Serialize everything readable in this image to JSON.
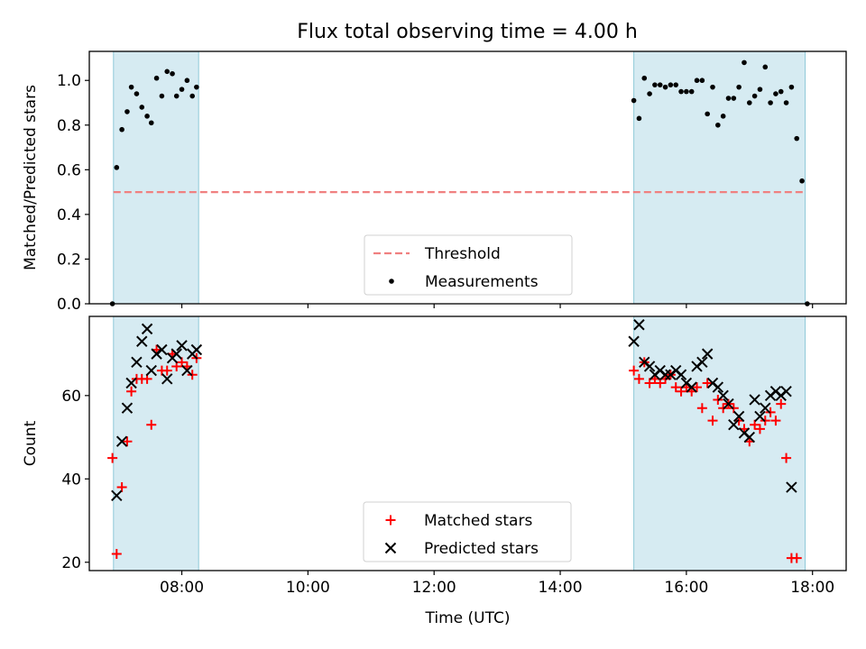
{
  "title": "Flux total observing time = 4.00 h",
  "chart_data": [
    {
      "type": "scatter",
      "ylabel": "Matched/Predicted stars",
      "xlabel": "",
      "xlim": [
        "06:32",
        "18:32"
      ],
      "ylim": [
        0,
        1.13
      ],
      "yticks": [
        0.0,
        0.2,
        0.4,
        0.6,
        0.8,
        1.0
      ],
      "ytick_labels": [
        "0.0",
        "0.2",
        "0.4",
        "0.6",
        "0.8",
        "1.0"
      ],
      "shaded_intervals": [
        [
          "06:55",
          "08:16"
        ],
        [
          "15:10",
          "17:53"
        ]
      ],
      "threshold": 0.5,
      "legend": {
        "placement": "lower center",
        "entries": [
          "Threshold",
          "Measurements"
        ]
      },
      "series": [
        {
          "name": "Threshold",
          "kind": "hline",
          "color": "#f08080",
          "x": [
            "06:55",
            "17:53"
          ],
          "y": 0.5
        },
        {
          "name": "Measurements",
          "kind": "dot",
          "color": "#000000",
          "points": [
            [
              "06:54",
              0.0
            ],
            [
              "06:58",
              0.61
            ],
            [
              "07:03",
              0.78
            ],
            [
              "07:08",
              0.86
            ],
            [
              "07:12",
              0.97
            ],
            [
              "07:17",
              0.94
            ],
            [
              "07:22",
              0.88
            ],
            [
              "07:27",
              0.84
            ],
            [
              "07:31",
              0.81
            ],
            [
              "07:36",
              1.01
            ],
            [
              "07:41",
              0.93
            ],
            [
              "07:46",
              1.04
            ],
            [
              "07:51",
              1.03
            ],
            [
              "07:55",
              0.93
            ],
            [
              "08:00",
              0.96
            ],
            [
              "08:05",
              1.0
            ],
            [
              "08:10",
              0.93
            ],
            [
              "08:14",
              0.97
            ],
            [
              "15:10",
              0.91
            ],
            [
              "15:15",
              0.83
            ],
            [
              "15:20",
              1.01
            ],
            [
              "15:25",
              0.94
            ],
            [
              "15:30",
              0.98
            ],
            [
              "15:35",
              0.98
            ],
            [
              "15:40",
              0.97
            ],
            [
              "15:45",
              0.98
            ],
            [
              "15:50",
              0.98
            ],
            [
              "15:55",
              0.95
            ],
            [
              "16:00",
              0.95
            ],
            [
              "16:05",
              0.95
            ],
            [
              "16:10",
              1.0
            ],
            [
              "16:15",
              1.0
            ],
            [
              "16:20",
              0.85
            ],
            [
              "16:25",
              0.97
            ],
            [
              "16:30",
              0.8
            ],
            [
              "16:35",
              0.84
            ],
            [
              "16:40",
              0.92
            ],
            [
              "16:45",
              0.92
            ],
            [
              "16:50",
              0.97
            ],
            [
              "16:55",
              1.08
            ],
            [
              "17:00",
              0.9
            ],
            [
              "17:05",
              0.93
            ],
            [
              "17:10",
              0.96
            ],
            [
              "17:15",
              1.06
            ],
            [
              "17:20",
              0.9
            ],
            [
              "17:25",
              0.94
            ],
            [
              "17:30",
              0.95
            ],
            [
              "17:35",
              0.9
            ],
            [
              "17:40",
              0.97
            ],
            [
              "17:45",
              0.74
            ],
            [
              "17:50",
              0.55
            ],
            [
              "17:55",
              0.0
            ]
          ]
        }
      ]
    },
    {
      "type": "scatter",
      "ylabel": "Count",
      "xlabel": "Time (UTC)",
      "xlim": [
        "06:32",
        "18:32"
      ],
      "ylim": [
        18,
        79
      ],
      "yticks": [
        20,
        40,
        60
      ],
      "ytick_labels": [
        "20",
        "40",
        "60"
      ],
      "xticks": [
        "08:00",
        "10:00",
        "12:00",
        "14:00",
        "16:00",
        "18:00"
      ],
      "xtick_labels": [
        "08:00",
        "10:00",
        "12:00",
        "14:00",
        "16:00",
        "18:00"
      ],
      "shaded_intervals": [
        [
          "06:55",
          "08:16"
        ],
        [
          "15:10",
          "17:53"
        ]
      ],
      "legend": {
        "placement": "lower center",
        "entries": [
          "Matched stars",
          "Predicted stars"
        ]
      },
      "series": [
        {
          "name": "Matched stars",
          "kind": "plus",
          "color": "#ff0000",
          "points": [
            [
              "06:54",
              45
            ],
            [
              "06:58",
              22
            ],
            [
              "07:03",
              38
            ],
            [
              "07:08",
              49
            ],
            [
              "07:12",
              61
            ],
            [
              "07:17",
              64
            ],
            [
              "07:22",
              64
            ],
            [
              "07:27",
              64
            ],
            [
              "07:31",
              53
            ],
            [
              "07:36",
              71
            ],
            [
              "07:41",
              66
            ],
            [
              "07:46",
              66
            ],
            [
              "07:51",
              70
            ],
            [
              "07:55",
              67
            ],
            [
              "08:00",
              68
            ],
            [
              "08:05",
              67
            ],
            [
              "08:10",
              65
            ],
            [
              "08:14",
              69
            ],
            [
              "15:10",
              66
            ],
            [
              "15:15",
              64
            ],
            [
              "15:20",
              68
            ],
            [
              "15:25",
              63
            ],
            [
              "15:30",
              64
            ],
            [
              "15:35",
              63
            ],
            [
              "15:40",
              64
            ],
            [
              "15:45",
              65
            ],
            [
              "15:50",
              62
            ],
            [
              "15:55",
              61
            ],
            [
              "16:00",
              62
            ],
            [
              "16:05",
              61
            ],
            [
              "16:10",
              62
            ],
            [
              "16:15",
              57
            ],
            [
              "16:20",
              63
            ],
            [
              "16:25",
              54
            ],
            [
              "16:30",
              59
            ],
            [
              "16:35",
              57
            ],
            [
              "16:40",
              58
            ],
            [
              "16:45",
              57
            ],
            [
              "16:50",
              54
            ],
            [
              "16:55",
              52
            ],
            [
              "17:00",
              49
            ],
            [
              "17:05",
              53
            ],
            [
              "17:10",
              52
            ],
            [
              "17:15",
              54
            ],
            [
              "17:20",
              56
            ],
            [
              "17:25",
              54
            ],
            [
              "17:30",
              58
            ],
            [
              "17:35",
              45
            ],
            [
              "17:40",
              21
            ],
            [
              "17:45",
              21
            ]
          ]
        },
        {
          "name": "Predicted stars",
          "kind": "x",
          "color": "#000000",
          "points": [
            [
              "06:58",
              36
            ],
            [
              "07:03",
              49
            ],
            [
              "07:08",
              57
            ],
            [
              "07:12",
              63
            ],
            [
              "07:17",
              68
            ],
            [
              "07:22",
              73
            ],
            [
              "07:27",
              76
            ],
            [
              "07:31",
              66
            ],
            [
              "07:36",
              70
            ],
            [
              "07:41",
              71
            ],
            [
              "07:46",
              64
            ],
            [
              "07:51",
              69
            ],
            [
              "07:55",
              70
            ],
            [
              "08:00",
              72
            ],
            [
              "08:05",
              66
            ],
            [
              "08:10",
              70
            ],
            [
              "08:14",
              71
            ],
            [
              "15:10",
              73
            ],
            [
              "15:15",
              77
            ],
            [
              "15:20",
              68
            ],
            [
              "15:25",
              67
            ],
            [
              "15:30",
              65
            ],
            [
              "15:35",
              66
            ],
            [
              "15:40",
              65
            ],
            [
              "15:45",
              65
            ],
            [
              "15:50",
              66
            ],
            [
              "15:55",
              65
            ],
            [
              "16:00",
              63
            ],
            [
              "16:05",
              62
            ],
            [
              "16:10",
              67
            ],
            [
              "16:15",
              68
            ],
            [
              "16:20",
              70
            ],
            [
              "16:25",
              63
            ],
            [
              "16:30",
              62
            ],
            [
              "16:35",
              60
            ],
            [
              "16:40",
              58
            ],
            [
              "16:45",
              53
            ],
            [
              "16:50",
              55
            ],
            [
              "16:55",
              51
            ],
            [
              "17:00",
              50
            ],
            [
              "17:05",
              59
            ],
            [
              "17:10",
              55
            ],
            [
              "17:15",
              57
            ],
            [
              "17:20",
              60
            ],
            [
              "17:25",
              61
            ],
            [
              "17:30",
              60
            ],
            [
              "17:35",
              61
            ],
            [
              "17:40",
              38
            ]
          ]
        }
      ]
    }
  ]
}
